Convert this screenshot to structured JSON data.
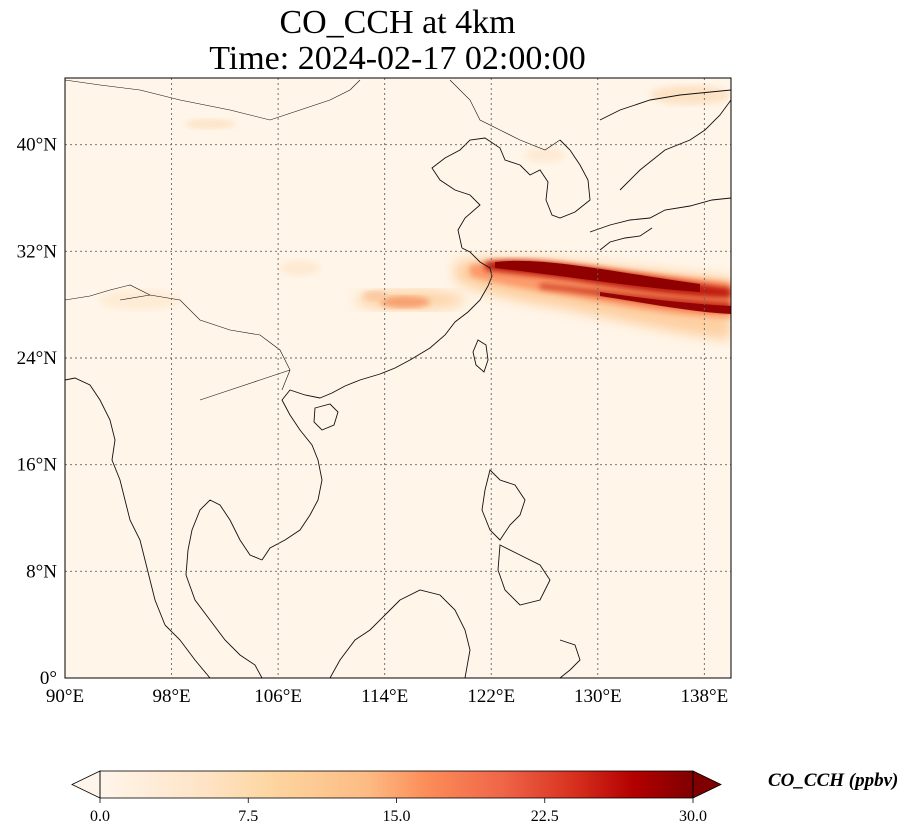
{
  "title": {
    "line1": "CO_CCH at 4km",
    "line2": "Time: 2024-02-17 02:00:00"
  },
  "map": {
    "extent": {
      "lon": [
        90,
        140
      ],
      "lat": [
        0,
        45
      ]
    },
    "lon_ticks": [
      {
        "value": 90,
        "label": "90°E"
      },
      {
        "value": 98,
        "label": "98°E"
      },
      {
        "value": 106,
        "label": "106°E"
      },
      {
        "value": 114,
        "label": "114°E"
      },
      {
        "value": 122,
        "label": "122°E"
      },
      {
        "value": 130,
        "label": "130°E"
      },
      {
        "value": 138,
        "label": "138°E"
      }
    ],
    "lat_ticks": [
      {
        "value": 0,
        "label": "0°"
      },
      {
        "value": 8,
        "label": "8°N"
      },
      {
        "value": 16,
        "label": "16°N"
      },
      {
        "value": 24,
        "label": "24°N"
      },
      {
        "value": 32,
        "label": "32°N"
      },
      {
        "value": 40,
        "label": "40°N"
      }
    ],
    "gridlines": true,
    "plume_max_region": "East China Sea to south of Japan, 122–140°E, ~28–31°N"
  },
  "colorbar": {
    "label": "CO_CCH (ppbv)",
    "ticks": [
      "0.0",
      "7.5",
      "15.0",
      "22.5",
      "30.0"
    ],
    "min": 0,
    "max": 30,
    "extend": "both",
    "colors": [
      "#fff5eb",
      "#fdd49e",
      "#fdbb84",
      "#fc8d59",
      "#ef6548",
      "#d7301f",
      "#b30000",
      "#7f0000"
    ]
  }
}
